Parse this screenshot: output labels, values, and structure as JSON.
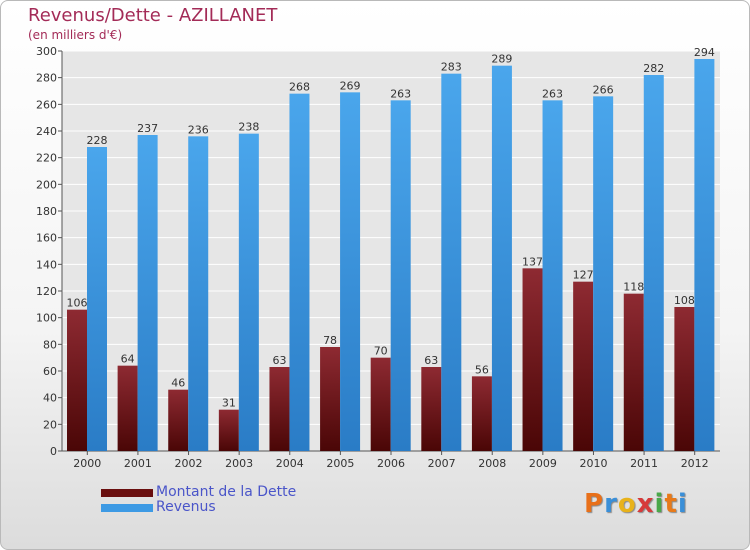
{
  "header": {
    "title": "Revenus/Dette - AZILLANET",
    "subtitle": "(en milliers d'€)"
  },
  "chart_data": {
    "type": "bar",
    "categories": [
      "2000",
      "2001",
      "2002",
      "2003",
      "2004",
      "2005",
      "2006",
      "2007",
      "2008",
      "2009",
      "2010",
      "2011",
      "2012"
    ],
    "series": [
      {
        "name": "Montant de la Dette",
        "color": "#7a1a22",
        "values": [
          106,
          64,
          46,
          31,
          63,
          78,
          70,
          63,
          56,
          137,
          127,
          118,
          108
        ]
      },
      {
        "name": "Revenus",
        "color": "#3d9ae4",
        "values": [
          228,
          237,
          236,
          238,
          268,
          269,
          263,
          283,
          289,
          263,
          266,
          282,
          294
        ]
      }
    ],
    "ylim": [
      0,
      300
    ],
    "ytick_step": 20,
    "grid": true,
    "legend_position": "bottom-left"
  },
  "legend": {
    "items": [
      {
        "label": "Montant de la Dette",
        "color": "#6a0f0f"
      },
      {
        "label": "Revenus",
        "color": "#3d9ae4"
      }
    ]
  },
  "logo": {
    "text": "Proxiti",
    "letter_colors": [
      "#e8701a",
      "#3a8fd8",
      "#e8b21a",
      "#d63a3a",
      "#4aa84a",
      "#e87a1a",
      "#3a8fd8"
    ]
  }
}
